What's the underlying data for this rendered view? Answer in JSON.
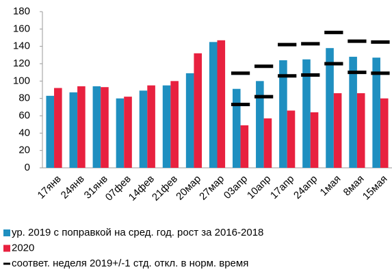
{
  "chart_data": {
    "type": "bar",
    "categories": [
      "17янв",
      "24янв",
      "31янв",
      "07фев",
      "14фев",
      "21фев",
      "20мар",
      "27мар",
      "03апр",
      "10апр",
      "17апр",
      "24апр",
      "1мая",
      "8мая",
      "15мая"
    ],
    "series": [
      {
        "name": "ур. 2019 с поправкой на сред. год. рост за 2016-2018",
        "color": "#1f8fc0",
        "values": [
          83,
          87,
          94,
          80,
          89,
          95,
          109,
          145,
          91,
          100,
          124,
          125,
          138,
          128,
          127
        ]
      },
      {
        "name": "2020",
        "color": "#e8213f",
        "values": [
          92,
          94,
          93,
          82,
          95,
          100,
          132,
          147,
          49,
          57,
          66,
          64,
          86,
          86,
          80
        ]
      },
      {
        "name": "соответ. неделя 2019+/-1 стд. откл. в норм. время",
        "color": "#000000",
        "type": "dash",
        "values": [
          null,
          null,
          null,
          null,
          null,
          null,
          null,
          null,
          109,
          117,
          142,
          143,
          156,
          146,
          145
        ],
        "lower": [
          null,
          null,
          null,
          null,
          null,
          null,
          null,
          null,
          73,
          82,
          106,
          107,
          120,
          110,
          109
        ]
      }
    ],
    "ylim": [
      0,
      180
    ],
    "yticks": [
      0,
      20,
      40,
      60,
      80,
      100,
      120,
      140,
      160,
      180
    ]
  }
}
